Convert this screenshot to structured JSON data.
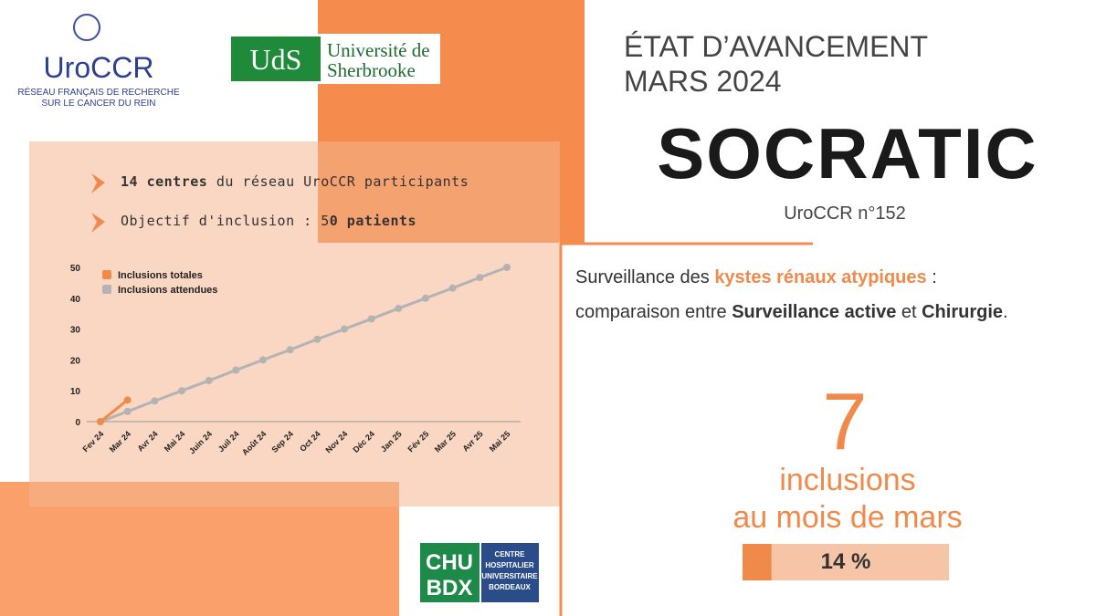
{
  "logos": {
    "uroccr": "UroCCR",
    "uroccr_sub": [
      "RÉSEAU FRANÇAIS DE RECHERCHE",
      "SUR LE CANCER DU REIN"
    ],
    "uds": "UdS",
    "uds_name": [
      "Université de",
      "Sherbrooke"
    ],
    "chu": [
      "CHU",
      "BDX"
    ],
    "chu_name": [
      "CENTRE",
      "HOSPITALIER",
      "UNIVERSITAIRE",
      "BORDEAUX"
    ]
  },
  "header": {
    "title": [
      "ÉTAT D’AVANCEMENT",
      "MARS 2024"
    ],
    "study": "SOCRATIC",
    "number": "UroCCR n°152"
  },
  "bullets": [
    [
      "14 centres",
      " du réseau UroCCR participants"
    ],
    [
      "Objectif d'inclusion : 5",
      "0 patients"
    ]
  ],
  "description": [
    [
      "Surveillance des ",
      "kystes rénaux atypiques",
      " :"
    ],
    [
      "comparaison entre ",
      "Surveillance active",
      " et ",
      "Chirurgie",
      "."
    ]
  ],
  "highlight": {
    "count": "7",
    "lines": [
      "inclusions",
      "au mois de mars"
    ]
  },
  "progress": {
    "value": 14,
    "label": "14 %"
  },
  "chart_data": {
    "type": "line",
    "categories": [
      "Fev 24",
      "Mar 24",
      "Avr 24",
      "Mai 24",
      "Juin 24",
      "Juil 24",
      "Août 24",
      "Sep 24",
      "Oct 24",
      "Nov 24",
      "Déc 24",
      "Jan 25",
      "Fév 25",
      "Mar 25",
      "Avr 25",
      "Mai 25"
    ],
    "series": [
      {
        "name": "Inclusions totales",
        "color": "#f08a4b",
        "values": [
          0,
          7,
          null,
          null,
          null,
          null,
          null,
          null,
          null,
          null,
          null,
          null,
          null,
          null,
          null,
          null
        ]
      },
      {
        "name": "Inclusions attendues",
        "color": "#b3b3b3",
        "values": [
          0,
          3.3,
          6.7,
          10,
          13.3,
          16.7,
          20,
          23.3,
          26.7,
          30,
          33.3,
          36.7,
          40,
          43.3,
          46.7,
          50
        ]
      }
    ],
    "ylim": [
      0,
      50
    ],
    "yticks": [
      0,
      10,
      20,
      30,
      40,
      50
    ],
    "grid": false,
    "legend": "top-left"
  }
}
